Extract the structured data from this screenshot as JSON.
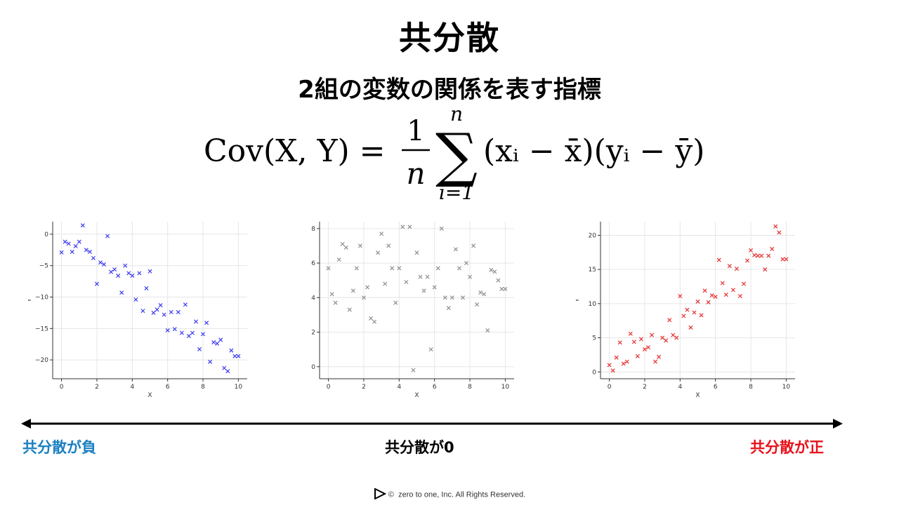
{
  "slide": {
    "title": "共分散",
    "subtitle": "2組の変数の関係を表す指標",
    "formula": {
      "lhs": "Cov(X, Y) =",
      "frac_num": "1",
      "frac_den": "n",
      "sum_top": "n",
      "sum_bottom": "i=1",
      "body": "(xᵢ − x̄)(yᵢ − ȳ)"
    },
    "labels": {
      "negative": "共分散が負",
      "zero": "共分散が0",
      "positive": "共分散が正"
    },
    "colors": {
      "negative": "#1a7fc1",
      "zero": "#000000",
      "positive": "#e8101a"
    },
    "footer": {
      "copyright": "©",
      "text": "zero to one, Inc. All Rights Reserved."
    }
  },
  "chart_data": [
    {
      "type": "scatter",
      "marker": "x",
      "color": "#3b3bf0",
      "xlabel": "X",
      "ylabel": "Y",
      "xlim": [
        -0.5,
        10.5
      ],
      "ylim": [
        -23,
        2
      ],
      "xticks": [
        0,
        2,
        4,
        6,
        8,
        10
      ],
      "yticks": [
        0,
        -5,
        -10,
        -15,
        -20
      ],
      "grid": true,
      "x": [
        0,
        0.2,
        0.4,
        0.6,
        0.8,
        1.0,
        1.2,
        1.4,
        1.6,
        1.8,
        2.0,
        2.2,
        2.4,
        2.6,
        2.8,
        3.0,
        3.2,
        3.4,
        3.6,
        3.8,
        4.0,
        4.2,
        4.4,
        4.6,
        4.8,
        5.0,
        5.2,
        5.4,
        5.6,
        5.8,
        6.0,
        6.2,
        6.4,
        6.6,
        6.8,
        7.0,
        7.2,
        7.4,
        7.6,
        7.8,
        8.0,
        8.2,
        8.4,
        8.6,
        8.8,
        9.0,
        9.2,
        9.4,
        9.6,
        9.8,
        10.0
      ],
      "y": [
        -2.9,
        -1.2,
        -1.5,
        -2.8,
        -1.9,
        -1.2,
        1.4,
        -2.5,
        -2.8,
        -3.8,
        -7.9,
        -4.5,
        -4.8,
        -0.3,
        -6.0,
        -5.6,
        -6.6,
        -9.3,
        -5.0,
        -6.2,
        -6.6,
        -10.4,
        -6.2,
        -12.2,
        -8.6,
        -5.9,
        -12.5,
        -12.0,
        -11.3,
        -12.8,
        -15.3,
        -12.4,
        -15.1,
        -12.4,
        -15.7,
        -11.2,
        -16.2,
        -15.7,
        -13.9,
        -18.3,
        -15.9,
        -14.1,
        -20.3,
        -17.2,
        -17.4,
        -16.8,
        -21.3,
        -21.8,
        -18.5,
        -19.4,
        -19.4
      ]
    },
    {
      "type": "scatter",
      "marker": "x",
      "color": "#909090",
      "xlabel": "X",
      "ylabel": "",
      "xlim": [
        -0.5,
        10.5
      ],
      "ylim": [
        -0.7,
        8.4
      ],
      "xticks": [
        0,
        2,
        4,
        6,
        8,
        10
      ],
      "yticks": [
        0,
        2,
        4,
        6,
        8
      ],
      "grid": true,
      "x": [
        0,
        0.2,
        0.4,
        0.6,
        0.8,
        1.0,
        1.2,
        1.4,
        1.6,
        1.8,
        2.0,
        2.2,
        2.4,
        2.6,
        2.8,
        3.0,
        3.2,
        3.4,
        3.6,
        3.8,
        4.0,
        4.2,
        4.4,
        4.6,
        4.8,
        5.0,
        5.2,
        5.4,
        5.6,
        5.8,
        6.0,
        6.2,
        6.4,
        6.6,
        6.8,
        7.0,
        7.2,
        7.4,
        7.6,
        7.8,
        8.0,
        8.2,
        8.4,
        8.6,
        8.8,
        9.0,
        9.2,
        9.4,
        9.6,
        9.8,
        10.0
      ],
      "y": [
        5.7,
        4.2,
        3.7,
        6.2,
        7.1,
        6.9,
        3.3,
        4.4,
        5.7,
        7.0,
        4.0,
        4.6,
        2.8,
        2.6,
        6.6,
        7.7,
        4.8,
        7.0,
        5.7,
        3.7,
        5.7,
        8.1,
        4.9,
        8.1,
        -0.2,
        6.6,
        5.2,
        4.4,
        5.2,
        1.0,
        4.6,
        5.7,
        8.0,
        4.0,
        3.4,
        4.0,
        6.8,
        5.7,
        4.0,
        6.0,
        5.2,
        7.0,
        3.6,
        4.3,
        4.2,
        2.1,
        5.6,
        5.5,
        5.0,
        4.5,
        4.5
      ]
    },
    {
      "type": "scatter",
      "marker": "x",
      "color": "#e83030",
      "xlabel": "X",
      "ylabel": "Y",
      "xlim": [
        -0.5,
        10.5
      ],
      "ylim": [
        -1,
        22
      ],
      "xticks": [
        0,
        2,
        4,
        6,
        8,
        10
      ],
      "yticks": [
        0,
        5,
        10,
        15,
        20
      ],
      "grid": true,
      "x": [
        0,
        0.2,
        0.4,
        0.6,
        0.8,
        1.0,
        1.2,
        1.4,
        1.6,
        1.8,
        2.0,
        2.2,
        2.4,
        2.6,
        2.8,
        3.0,
        3.2,
        3.4,
        3.6,
        3.8,
        4.0,
        4.2,
        4.4,
        4.6,
        4.8,
        5.0,
        5.2,
        5.4,
        5.6,
        5.8,
        6.0,
        6.2,
        6.4,
        6.6,
        6.8,
        7.0,
        7.2,
        7.4,
        7.6,
        7.8,
        8.0,
        8.2,
        8.4,
        8.6,
        8.8,
        9.0,
        9.2,
        9.4,
        9.6,
        9.8,
        10.0
      ],
      "y": [
        1.0,
        0.2,
        2.1,
        4.3,
        1.2,
        1.5,
        5.6,
        4.4,
        2.3,
        4.8,
        3.3,
        3.6,
        5.4,
        1.5,
        2.2,
        5.0,
        4.6,
        7.6,
        5.4,
        5.0,
        11.1,
        8.2,
        9.1,
        6.5,
        8.7,
        10.3,
        8.3,
        11.9,
        10.2,
        11.2,
        11.0,
        16.4,
        13.0,
        11.3,
        15.5,
        12.0,
        15.1,
        11.1,
        12.9,
        16.3,
        17.8,
        17.1,
        17.0,
        17.0,
        15.0,
        17.0,
        18.0,
        21.3,
        20.4,
        16.5,
        16.5
      ]
    }
  ]
}
